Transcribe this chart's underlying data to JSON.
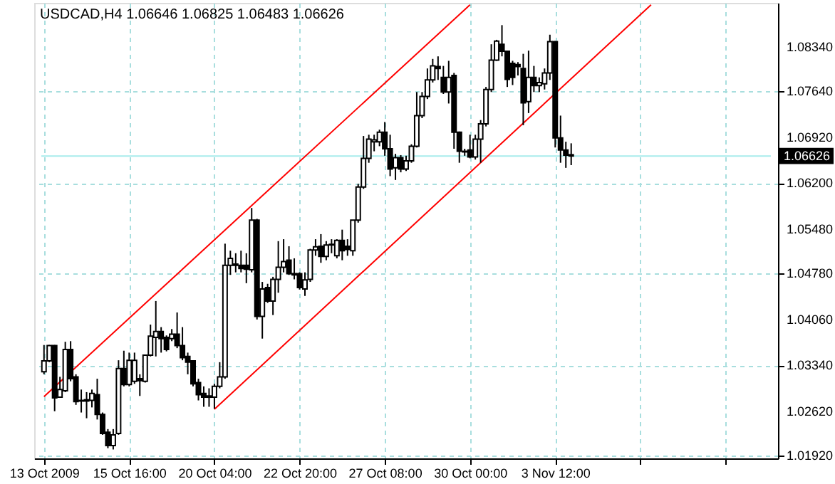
{
  "chart_data": {
    "type": "candlestick",
    "title": "USDCAD,H4  1.06646 1.06825 1.06483 1.06626",
    "color": "#000000",
    "categories": [
      "13 Oct 2009",
      null,
      null,
      null,
      null,
      null,
      null,
      null,
      null,
      null,
      null,
      null,
      null,
      null,
      null,
      null,
      "15 Oct 16:00",
      null,
      null,
      null,
      null,
      null,
      null,
      null,
      null,
      null,
      null,
      null,
      null,
      null,
      null,
      null,
      "20 Oct 04:00",
      null,
      null,
      null,
      null,
      null,
      null,
      null,
      null,
      null,
      null,
      null,
      null,
      null,
      null,
      null,
      "22 Oct 20:00",
      null,
      null,
      null,
      null,
      null,
      null,
      null,
      null,
      null,
      null,
      null,
      null,
      null,
      null,
      null,
      "27 Oct 08:00",
      null,
      null,
      null,
      null,
      null,
      null,
      null,
      null,
      null,
      null,
      null,
      null,
      null,
      null,
      null,
      "30 Oct 00:00",
      null,
      null,
      null,
      null,
      null,
      null,
      null,
      null,
      null,
      null,
      null,
      null,
      null,
      null,
      null,
      "3 Nov 12:00",
      null,
      null,
      null,
      null,
      null,
      null,
      null,
      null,
      null,
      null,
      null,
      null,
      null,
      null,
      null,
      null,
      null,
      null,
      null,
      null,
      null,
      null,
      null,
      null,
      null,
      null,
      null,
      null,
      null,
      null,
      null,
      null,
      null,
      null,
      null,
      null,
      null,
      null,
      null,
      null
    ],
    "ohlc": [
      [
        1.0324,
        1.0366,
        1.032,
        1.0341
      ],
      [
        1.0341,
        1.0366,
        1.0339,
        1.0365
      ],
      [
        1.0365,
        1.0366,
        1.0262,
        1.0283
      ],
      [
        1.0284,
        1.0316,
        1.0283,
        1.0296
      ],
      [
        1.0294,
        1.0371,
        1.0292,
        1.0359
      ],
      [
        1.0359,
        1.0372,
        1.0309,
        1.0313
      ],
      [
        1.0316,
        1.032,
        1.0272,
        1.0277
      ],
      [
        1.0279,
        1.0296,
        1.026,
        1.0278
      ],
      [
        1.028,
        1.0292,
        1.0251,
        1.0278
      ],
      [
        1.0279,
        1.0296,
        1.0268,
        1.029
      ],
      [
        1.0288,
        1.0313,
        1.0249,
        1.0257
      ],
      [
        1.0257,
        1.026,
        1.0225,
        1.0227
      ],
      [
        1.0229,
        1.0234,
        1.0204,
        1.0208
      ],
      [
        1.0208,
        1.0234,
        1.0202,
        1.0225
      ],
      [
        1.0227,
        1.0342,
        1.0225,
        1.0329
      ],
      [
        1.0329,
        1.0357,
        1.0301,
        1.0304
      ],
      [
        1.0304,
        1.0354,
        1.0301,
        1.0342
      ],
      [
        1.0309,
        1.0354,
        1.0305,
        1.0342
      ],
      [
        1.0313,
        1.032,
        1.0286,
        1.031
      ],
      [
        1.0309,
        1.0351,
        1.0307,
        1.035
      ],
      [
        1.035,
        1.0398,
        1.0348,
        1.038
      ],
      [
        1.0378,
        1.0435,
        1.0348,
        1.0387
      ],
      [
        1.0387,
        1.0394,
        1.0354,
        1.0376
      ],
      [
        1.0378,
        1.0381,
        1.0356,
        1.0359
      ],
      [
        1.0376,
        1.0391,
        1.0372,
        1.0383
      ],
      [
        1.0383,
        1.0417,
        1.0361,
        1.0365
      ],
      [
        1.0365,
        1.0394,
        1.0342,
        1.0346
      ],
      [
        1.0348,
        1.0354,
        1.032,
        1.0339
      ],
      [
        1.0341,
        1.0342,
        1.0301,
        1.0305
      ],
      [
        1.0307,
        1.0313,
        1.0279,
        1.0288
      ],
      [
        1.029,
        1.0301,
        1.0269,
        1.0284
      ],
      [
        1.0284,
        1.0298,
        1.0269,
        1.0286
      ],
      [
        1.0284,
        1.0305,
        1.0266,
        1.0301
      ],
      [
        1.0301,
        1.0339,
        1.0298,
        1.0316
      ],
      [
        1.0316,
        1.0525,
        1.0313,
        1.0491
      ],
      [
        1.0491,
        1.0514,
        1.0476,
        1.0502
      ],
      [
        1.0491,
        1.051,
        1.048,
        1.0493
      ],
      [
        1.0491,
        1.0514,
        1.048,
        1.0486
      ],
      [
        1.0491,
        1.051,
        1.0463,
        1.0485
      ],
      [
        1.0484,
        1.0581,
        1.048,
        1.0562
      ],
      [
        1.0562,
        1.0564,
        1.0406,
        1.0411
      ],
      [
        1.0411,
        1.0465,
        1.0376,
        1.0454
      ],
      [
        1.0456,
        1.0462,
        1.0432,
        1.0435
      ],
      [
        1.0435,
        1.0473,
        1.0413,
        1.0469
      ],
      [
        1.0469,
        1.0529,
        1.0448,
        1.0488
      ],
      [
        1.0488,
        1.0532,
        1.048,
        1.0497
      ],
      [
        1.0499,
        1.0521,
        1.0476,
        1.0478
      ],
      [
        1.0478,
        1.0502,
        1.0469,
        1.0476
      ],
      [
        1.0478,
        1.048,
        1.0453,
        1.0456
      ],
      [
        1.0454,
        1.048,
        1.0443,
        1.0468
      ],
      [
        1.0469,
        1.0517,
        1.0465,
        1.0515
      ],
      [
        1.0515,
        1.0532,
        1.0506,
        1.052
      ],
      [
        1.0521,
        1.054,
        1.0495,
        1.0505
      ],
      [
        1.0505,
        1.0529,
        1.0499,
        1.0523
      ],
      [
        1.0523,
        1.0532,
        1.051,
        1.0524
      ],
      [
        1.0506,
        1.0532,
        1.0502,
        1.053
      ],
      [
        1.053,
        1.0547,
        1.0499,
        1.0514
      ],
      [
        1.0521,
        1.0532,
        1.0506,
        1.0516
      ],
      [
        1.0514,
        1.0562,
        1.0506,
        1.0562
      ],
      [
        1.0562,
        1.0619,
        1.0558,
        1.0614
      ],
      [
        1.0614,
        1.0694,
        1.0611,
        1.0659
      ],
      [
        1.0659,
        1.0696,
        1.0652,
        1.0689
      ],
      [
        1.0685,
        1.0696,
        1.067,
        1.0688
      ],
      [
        1.0685,
        1.0704,
        1.0678,
        1.07
      ],
      [
        1.07,
        1.0716,
        1.0663,
        1.0674
      ],
      [
        1.0674,
        1.0696,
        1.0631,
        1.0642
      ],
      [
        1.0644,
        1.0666,
        1.0625,
        1.066
      ],
      [
        1.066,
        1.0664,
        1.0637,
        1.0642
      ],
      [
        1.0642,
        1.0663,
        1.0639,
        1.0655
      ],
      [
        1.0655,
        1.0681,
        1.0652,
        1.0678
      ],
      [
        1.0678,
        1.0763,
        1.0676,
        1.0726
      ],
      [
        1.0726,
        1.0763,
        1.0722,
        1.0756
      ],
      [
        1.0756,
        1.08,
        1.0752,
        1.0782
      ],
      [
        1.0782,
        1.0815,
        1.0778,
        1.0804
      ],
      [
        1.0803,
        1.0819,
        1.0782,
        1.08
      ],
      [
        1.0786,
        1.0804,
        1.076,
        1.0763
      ],
      [
        1.0763,
        1.0812,
        1.0745,
        1.0786
      ],
      [
        1.0789,
        1.0793,
        1.0674,
        1.07
      ],
      [
        1.07,
        1.0701,
        1.0652,
        1.067
      ],
      [
        1.067,
        1.0674,
        1.0663,
        1.0669
      ],
      [
        1.0672,
        1.0696,
        1.0659,
        1.0661
      ],
      [
        1.0661,
        1.0696,
        1.0657,
        1.0689
      ],
      [
        1.0689,
        1.0719,
        1.0652,
        1.0713
      ],
      [
        1.0713,
        1.0771,
        1.0709,
        1.0767
      ],
      [
        1.0767,
        1.0838,
        1.0763,
        1.0813
      ],
      [
        1.0813,
        1.0845,
        1.0812,
        1.0843
      ],
      [
        1.0838,
        1.0868,
        1.0819,
        1.0827
      ],
      [
        1.0827,
        1.0828,
        1.0771,
        1.0783
      ],
      [
        1.0808,
        1.0812,
        1.0774,
        1.0786
      ],
      [
        1.0806,
        1.081,
        1.0789,
        1.0803
      ],
      [
        1.08,
        1.0823,
        1.0711,
        1.0746
      ],
      [
        1.0748,
        1.0828,
        1.073,
        1.0786
      ],
      [
        1.0786,
        1.0804,
        1.0763,
        1.0773
      ],
      [
        1.0773,
        1.0786,
        1.0763,
        1.0778
      ],
      [
        1.0776,
        1.08,
        1.0767,
        1.0793
      ],
      [
        1.0793,
        1.0853,
        1.0782,
        1.0842
      ],
      [
        1.0842,
        1.0843,
        1.0676,
        1.0691
      ],
      [
        1.0691,
        1.0726,
        1.0652,
        1.0672
      ],
      [
        1.0672,
        1.0685,
        1.0644,
        1.0664
      ],
      [
        1.06646,
        1.06825,
        1.06483,
        1.06626
      ],
      null,
      null,
      null,
      null,
      null,
      null,
      null,
      null,
      null,
      null,
      null,
      null,
      null,
      null,
      null,
      null,
      null,
      null,
      null,
      null,
      null,
      null,
      null,
      null,
      null,
      null,
      null,
      null,
      null,
      null,
      null,
      null,
      null,
      null,
      null,
      null,
      null
    ],
    "series": [
      {
        "type": "line",
        "color": "#ff0000",
        "values": [
          1.0285,
          null,
          null,
          null,
          null,
          null,
          null,
          null,
          null,
          null,
          null,
          null,
          null,
          null,
          null,
          null,
          null,
          null,
          null,
          null,
          null,
          null,
          null,
          null,
          null,
          null,
          null,
          null,
          null,
          null,
          null,
          null,
          null,
          null,
          null,
          null,
          null,
          null,
          null,
          null,
          null,
          null,
          null,
          null,
          null,
          null,
          null,
          null,
          null,
          null,
          null,
          null,
          null,
          null,
          null,
          null,
          null,
          null,
          null,
          null,
          null,
          null,
          null,
          null,
          null,
          null,
          null,
          null,
          null,
          null,
          null,
          null,
          null,
          null,
          null,
          null,
          null,
          null,
          null,
          null,
          1.09,
          null,
          null,
          null,
          null,
          null,
          null,
          null,
          null,
          null,
          null,
          null,
          null,
          null,
          null,
          null,
          null,
          null,
          null,
          null,
          null,
          null,
          null,
          null,
          null,
          null,
          null,
          null,
          null,
          null,
          null,
          null,
          null,
          null,
          null,
          null,
          null,
          null,
          null,
          null,
          null,
          null,
          null,
          null,
          null,
          null,
          null,
          null,
          null,
          null,
          null,
          null,
          null,
          null,
          null,
          null,
          null
        ]
      },
      {
        "type": "line",
        "color": "#ff0000",
        "values": [
          null,
          null,
          null,
          null,
          null,
          null,
          null,
          null,
          null,
          null,
          null,
          null,
          null,
          null,
          null,
          null,
          null,
          null,
          null,
          null,
          null,
          null,
          null,
          null,
          null,
          null,
          null,
          null,
          null,
          null,
          null,
          null,
          1.0265,
          null,
          null,
          null,
          null,
          null,
          null,
          null,
          null,
          null,
          null,
          null,
          null,
          null,
          null,
          null,
          null,
          null,
          null,
          null,
          null,
          null,
          null,
          null,
          null,
          null,
          null,
          null,
          null,
          null,
          null,
          null,
          null,
          null,
          null,
          null,
          null,
          null,
          null,
          null,
          null,
          null,
          null,
          null,
          null,
          null,
          null,
          null,
          null,
          null,
          null,
          null,
          null,
          null,
          null,
          null,
          null,
          null,
          null,
          null,
          null,
          null,
          null,
          null,
          null,
          null,
          null,
          null,
          null,
          null,
          null,
          null,
          null,
          null,
          null,
          null,
          null,
          null,
          null,
          null,
          null,
          null,
          1.09,
          null,
          null,
          null,
          null,
          null,
          null,
          null,
          null,
          null,
          null,
          null,
          null,
          null,
          null,
          null,
          null,
          null,
          null,
          null,
          null,
          null,
          null
        ]
      }
    ],
    "ylim": [
      1.0188,
      1.0903
    ],
    "yticks": [
      {
        "value": 1.0192,
        "label": "1.01920"
      },
      {
        "value": 1.0262,
        "label": "1.02620"
      },
      {
        "value": 1.0334,
        "label": "1.03340"
      },
      {
        "value": 1.0406,
        "label": "1.04060"
      },
      {
        "value": 1.0478,
        "label": "1.04780"
      },
      {
        "value": 1.0548,
        "label": "1.05480"
      },
      {
        "value": 1.062,
        "label": "1.06200"
      },
      {
        "value": 1.0692,
        "label": "1.06920"
      },
      {
        "value": 1.0764,
        "label": "1.07640"
      },
      {
        "value": 1.0834,
        "label": "1.08340"
      }
    ],
    "ref_lines": [
      {
        "axis": "y",
        "value": 1.06626,
        "label": "1.06626",
        "color": "#a8ecec"
      }
    ],
    "grid": true
  }
}
